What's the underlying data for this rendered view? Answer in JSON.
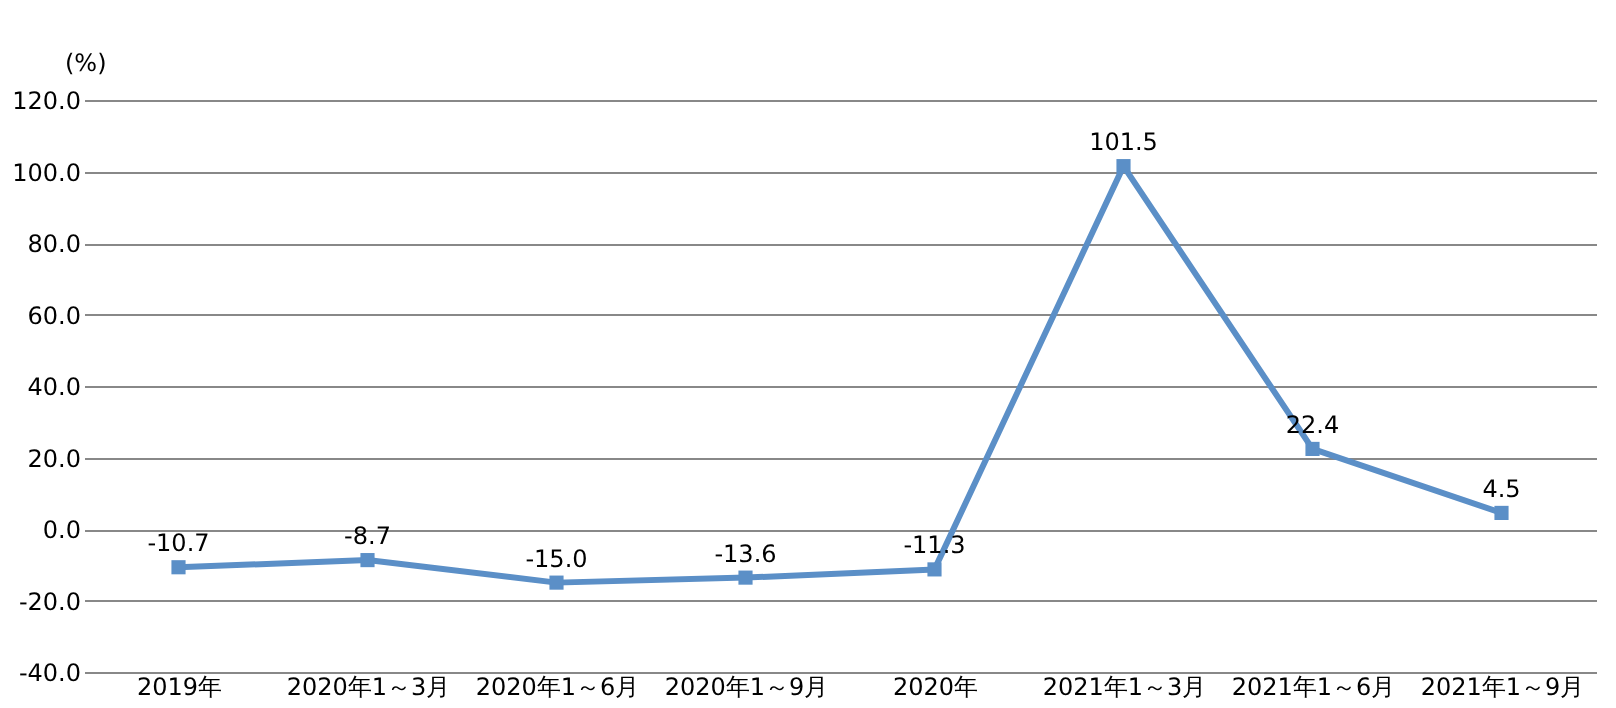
{
  "chart_data": {
    "type": "line",
    "ylabel": "(%)",
    "categories": [
      "2019年",
      "2020年1～3月",
      "2020年1～6月",
      "2020年1～9月",
      "2020年",
      "2021年1～3月",
      "2021年1～6月",
      "2021年1～9月"
    ],
    "series": [
      {
        "color": "#5b8fc7",
        "values": [
          -10.7,
          -8.7,
          -15.0,
          -13.6,
          -11.3,
          101.5,
          22.4,
          4.5
        ],
        "value_labels": [
          "-10.7",
          "-8.7",
          "-15.0",
          "-13.6",
          "-11.3",
          "101.5",
          "22.4",
          "4.5"
        ]
      }
    ],
    "ylim": [
      -40,
      120
    ],
    "yticks": [
      {
        "value": -40,
        "label": "-40.0"
      },
      {
        "value": -20,
        "label": "-20.0"
      },
      {
        "value": 0,
        "label": "0.0"
      },
      {
        "value": 20,
        "label": "20.0"
      },
      {
        "value": 40,
        "label": "40.0"
      },
      {
        "value": 60,
        "label": "60.0"
      },
      {
        "value": 80,
        "label": "80.0"
      },
      {
        "value": 100,
        "label": "100.0"
      },
      {
        "value": 120,
        "label": "120.0"
      }
    ],
    "grid": "y",
    "marker": "square",
    "line_style": "solid"
  }
}
